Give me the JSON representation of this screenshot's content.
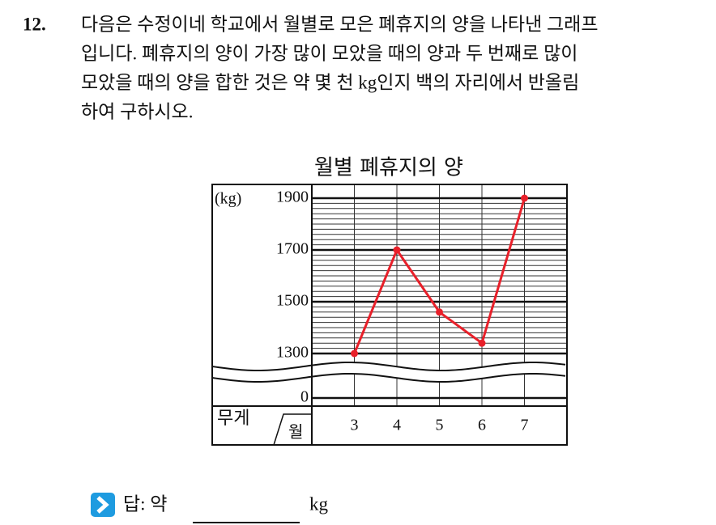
{
  "question": {
    "number": "12.",
    "lines": [
      "다음은 수정이네 학교에서 월별로 모은 폐휴지의 양을 나타낸 그래프",
      "입니다. 폐휴지의 양이 가장 많이 모았을 때의 양과 두 번째로 많이",
      "모았을 때의 양을 합한 것은 약 몇 천 kg인지 백의 자리에서 반올림",
      "하여 구하시오."
    ]
  },
  "chart_data": {
    "type": "line",
    "title": "월별 폐휴지의 양",
    "y_unit": "(kg)",
    "corner_y_label": "무게",
    "corner_x_label": "월",
    "categories": [
      "3",
      "4",
      "5",
      "6",
      "7"
    ],
    "values": [
      1300,
      1700,
      1460,
      1340,
      1900
    ],
    "color": "#e8202a",
    "ylim": [
      1300,
      1900
    ],
    "yticks": [
      0,
      1300,
      1500,
      1700,
      1900
    ],
    "minor_ytick_step": 20,
    "axis_break": true,
    "grid": true
  },
  "answer": {
    "label": "답: 약",
    "unit": "kg"
  }
}
